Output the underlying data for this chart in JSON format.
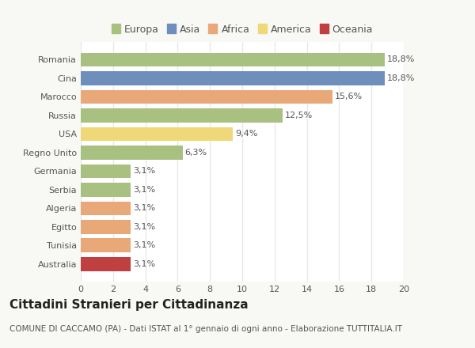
{
  "categories": [
    "Romania",
    "Cina",
    "Marocco",
    "Russia",
    "USA",
    "Regno Unito",
    "Germania",
    "Serbia",
    "Algeria",
    "Egitto",
    "Tunisia",
    "Australia"
  ],
  "values": [
    18.8,
    18.8,
    15.6,
    12.5,
    9.4,
    6.3,
    3.1,
    3.1,
    3.1,
    3.1,
    3.1,
    3.1
  ],
  "labels": [
    "18,8%",
    "18,8%",
    "15,6%",
    "12,5%",
    "9,4%",
    "6,3%",
    "3,1%",
    "3,1%",
    "3,1%",
    "3,1%",
    "3,1%",
    "3,1%"
  ],
  "bar_colors": [
    "#a8c080",
    "#6e8fbc",
    "#e8a878",
    "#a8c080",
    "#f0d878",
    "#a8c080",
    "#a8c080",
    "#a8c080",
    "#e8a878",
    "#e8a878",
    "#e8a878",
    "#c04040"
  ],
  "legend": [
    {
      "label": "Europa",
      "color": "#a8c080"
    },
    {
      "label": "Asia",
      "color": "#6e8fbc"
    },
    {
      "label": "Africa",
      "color": "#e8a878"
    },
    {
      "label": "America",
      "color": "#f0d878"
    },
    {
      "label": "Oceania",
      "color": "#c04040"
    }
  ],
  "title": "Cittadini Stranieri per Cittadinanza",
  "subtitle": "COMUNE DI CACCAMO (PA) - Dati ISTAT al 1° gennaio di ogni anno - Elaborazione TUTTITALIA.IT",
  "xlim": [
    0,
    20
  ],
  "xticks": [
    0,
    2,
    4,
    6,
    8,
    10,
    12,
    14,
    16,
    18,
    20
  ],
  "background_color": "#f8f8f5",
  "plot_bg_color": "#ffffff",
  "grid_color": "#e8e8e8",
  "bar_height": 0.75,
  "title_fontsize": 11,
  "subtitle_fontsize": 7.5,
  "label_fontsize": 8,
  "tick_fontsize": 8,
  "legend_fontsize": 9
}
